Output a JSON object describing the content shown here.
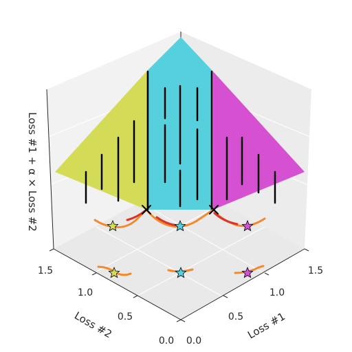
{
  "chart_data": {
    "type": "3d-surface",
    "xlabel": "Loss #1",
    "ylabel": "Loss #2",
    "zlabel": "Loss #1 + α × Loss #2",
    "x_ticks": [
      "0.0",
      "0.5",
      "1.0",
      "1.5"
    ],
    "y_ticks": [
      "0.0",
      "0.5",
      "1.0",
      "1.5"
    ],
    "xlim": [
      0,
      1.6
    ],
    "ylim": [
      0,
      1.6
    ],
    "regions": [
      {
        "color": "#d4dc57"
      },
      {
        "color": "#55d0dc"
      },
      {
        "color": "#d651d1"
      }
    ],
    "markers": [
      {
        "kind": "star",
        "color": "#d4dc57",
        "level": "floor"
      },
      {
        "kind": "star",
        "color": "#55d0dc",
        "level": "floor"
      },
      {
        "kind": "star",
        "color": "#d651d1",
        "level": "floor"
      },
      {
        "kind": "star",
        "color": "#d4dc57",
        "level": "plane"
      },
      {
        "kind": "star",
        "color": "#55d0dc",
        "level": "plane"
      },
      {
        "kind": "star",
        "color": "#d651d1",
        "level": "plane"
      },
      {
        "kind": "x",
        "color": "#000000",
        "level": "plane"
      },
      {
        "kind": "x",
        "color": "#000000",
        "level": "plane"
      }
    ],
    "curve_colors": {
      "front": "#f28a2c",
      "highlight": "#d9342a"
    },
    "grid": true
  }
}
